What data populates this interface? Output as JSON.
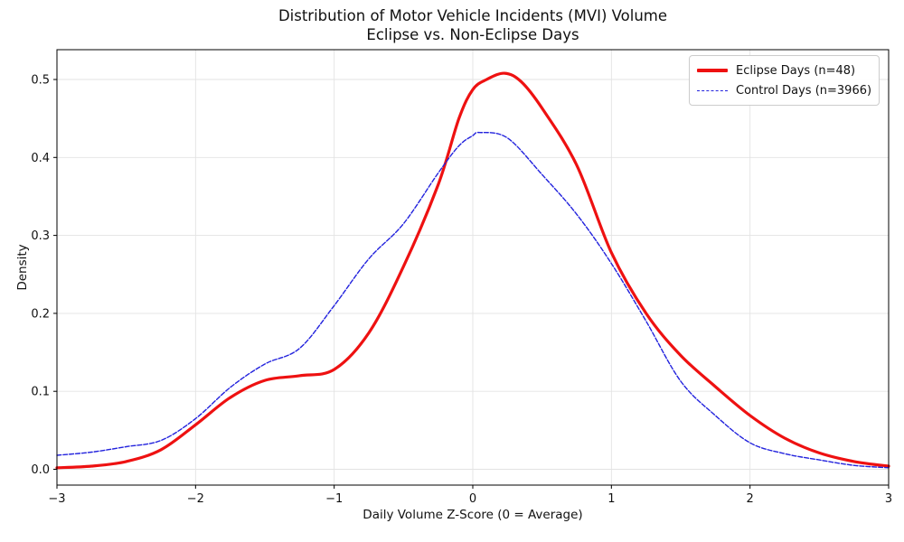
{
  "title": {
    "line1": "Distribution of Motor Vehicle Incidents (MVI) Volume",
    "line2": "Eclipse vs. Non-Eclipse Days"
  },
  "axes": {
    "xlabel": "Daily Volume Z-Score (0 = Average)",
    "ylabel": "Density",
    "xlim": [
      -3,
      3
    ],
    "x_ticks": {
      "values": [
        -3,
        -2,
        -1,
        0,
        1,
        2,
        3
      ],
      "labels": [
        "−3",
        "−2",
        "−1",
        "0",
        "1",
        "2",
        "3"
      ]
    },
    "y_ticks": {
      "values": [
        0.0,
        0.1,
        0.2,
        0.3,
        0.4,
        0.5
      ],
      "labels": [
        "0.0",
        "0.1",
        "0.2",
        "0.3",
        "0.4",
        "0.5"
      ]
    },
    "grid": true
  },
  "colors": {
    "eclipse_line": "#ee1111",
    "control_line": "#2222dd",
    "grid_line": "#e3e3e3",
    "spine": "#000000",
    "text": "#111111",
    "legend_border": "#cccccc"
  },
  "legend": {
    "position": "upper right",
    "entries": [
      {
        "label": "Eclipse Days (n=48)",
        "color": "#ee1111",
        "style": "solid",
        "line_width": 3.2
      },
      {
        "label": "Control Days (n=3966)",
        "color": "#2222dd",
        "style": "dashed",
        "line_width": 1.4
      }
    ]
  },
  "chart_data": {
    "type": "line",
    "title": "Distribution of Motor Vehicle Incidents (MVI) Volume — Eclipse vs. Non-Eclipse Days",
    "xlabel": "Daily Volume Z-Score (0 = Average)",
    "ylabel": "Density",
    "xlim": [
      -3,
      3
    ],
    "ylim": [
      -0.026,
      0.537
    ],
    "grid": true,
    "legend_position": "upper right",
    "series": [
      {
        "name": "Eclipse Days (n=48)",
        "color": "#ee1111",
        "line_style": "solid",
        "line_width": 3.2,
        "peak": {
          "x": 0.23,
          "y": 0.508
        },
        "x": [
          -3,
          -2.75,
          -2.5,
          -2.25,
          -2,
          -1.75,
          -1.5,
          -1.25,
          -1,
          -0.75,
          -0.5,
          -0.25,
          -0.1,
          0,
          0.1,
          0.23,
          0.35,
          0.5,
          0.75,
          1,
          1.25,
          1.5,
          1.75,
          2,
          2.25,
          2.5,
          2.75,
          3
        ],
        "y": [
          0.002,
          0.004,
          0.01,
          0.025,
          0.057,
          0.092,
          0.114,
          0.12,
          0.128,
          0.175,
          0.26,
          0.365,
          0.45,
          0.487,
          0.5,
          0.508,
          0.497,
          0.463,
          0.39,
          0.278,
          0.2,
          0.146,
          0.106,
          0.069,
          0.04,
          0.021,
          0.01,
          0.004
        ]
      },
      {
        "name": "Control Days (n=3966)",
        "color": "#2222dd",
        "line_style": "dashed",
        "line_width": 1.4,
        "peak": {
          "x": 0.05,
          "y": 0.432
        },
        "x": [
          -3,
          -2.75,
          -2.5,
          -2.25,
          -2,
          -1.75,
          -1.5,
          -1.25,
          -1,
          -0.75,
          -0.5,
          -0.25,
          -0.1,
          0,
          0.05,
          0.25,
          0.5,
          0.75,
          1,
          1.25,
          1.5,
          1.75,
          2,
          2.25,
          2.5,
          2.75,
          3
        ],
        "y": [
          0.018,
          0.022,
          0.029,
          0.037,
          0.065,
          0.105,
          0.135,
          0.155,
          0.21,
          0.27,
          0.315,
          0.38,
          0.415,
          0.428,
          0.432,
          0.425,
          0.378,
          0.327,
          0.264,
          0.19,
          0.113,
          0.069,
          0.034,
          0.02,
          0.012,
          0.005,
          0.002
        ]
      }
    ]
  }
}
